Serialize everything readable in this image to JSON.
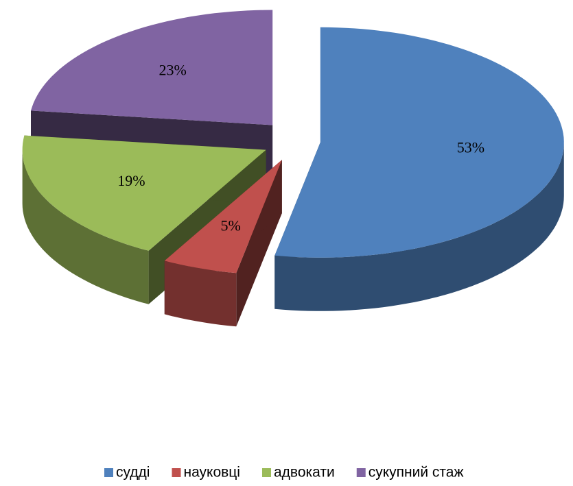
{
  "chart_data": {
    "type": "pie",
    "categories": [
      "судді",
      "науковці",
      "адвокати",
      "сукупний стаж"
    ],
    "values": [
      53,
      5,
      19,
      23
    ],
    "value_labels": [
      "53%",
      "5%",
      "19%",
      "23%"
    ],
    "colors": [
      "#4f81bd",
      "#c0504d",
      "#9bbb59",
      "#8064a2"
    ],
    "legend": "bottom"
  }
}
